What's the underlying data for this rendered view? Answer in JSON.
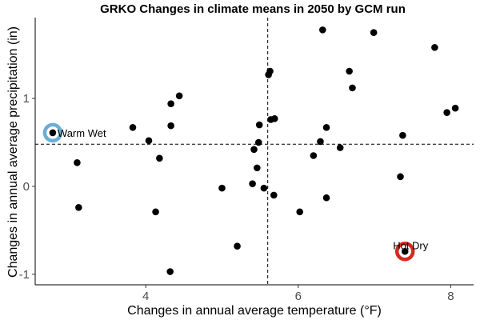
{
  "chart_data": {
    "type": "scatter",
    "title": "GRKO Changes in climate means in 2050 by GCM run",
    "xlabel": "Changes in annual average temperature (°F)",
    "ylabel": "Changes in annual average precipitation (in)",
    "xlim": [
      2.55,
      8.3
    ],
    "ylim": [
      -1.12,
      1.92
    ],
    "xticks": [
      4,
      6,
      8
    ],
    "yticks": [
      -1,
      0,
      1
    ],
    "tick_labels_x": [
      "4",
      "6",
      "8"
    ],
    "tick_labels_y": [
      "-1",
      "0",
      "1"
    ],
    "grid": false,
    "reference_lines": {
      "x": 5.6,
      "y": 0.48
    },
    "point_color": "#000000",
    "points": [
      {
        "x": 2.78,
        "y": 0.61
      },
      {
        "x": 3.1,
        "y": 0.27
      },
      {
        "x": 3.12,
        "y": -0.24
      },
      {
        "x": 3.83,
        "y": 0.67
      },
      {
        "x": 4.04,
        "y": 0.52
      },
      {
        "x": 4.13,
        "y": -0.29
      },
      {
        "x": 4.18,
        "y": 0.32
      },
      {
        "x": 4.33,
        "y": 0.94
      },
      {
        "x": 4.33,
        "y": 0.69
      },
      {
        "x": 4.44,
        "y": 1.03
      },
      {
        "x": 4.32,
        "y": -0.97
      },
      {
        "x": 5.0,
        "y": -0.02
      },
      {
        "x": 5.2,
        "y": -0.68
      },
      {
        "x": 5.4,
        "y": 0.03
      },
      {
        "x": 5.42,
        "y": 0.42
      },
      {
        "x": 5.46,
        "y": 0.21
      },
      {
        "x": 5.48,
        "y": 0.5
      },
      {
        "x": 5.49,
        "y": 0.7
      },
      {
        "x": 5.55,
        "y": -0.02
      },
      {
        "x": 5.61,
        "y": 1.27
      },
      {
        "x": 5.63,
        "y": 1.31
      },
      {
        "x": 5.64,
        "y": 0.76
      },
      {
        "x": 5.69,
        "y": 0.77
      },
      {
        "x": 5.68,
        "y": -0.1
      },
      {
        "x": 6.02,
        "y": -0.29
      },
      {
        "x": 6.2,
        "y": 0.35
      },
      {
        "x": 6.29,
        "y": 0.51
      },
      {
        "x": 6.32,
        "y": 1.78
      },
      {
        "x": 6.37,
        "y": 0.67
      },
      {
        "x": 6.37,
        "y": -0.13
      },
      {
        "x": 6.55,
        "y": 0.44
      },
      {
        "x": 6.67,
        "y": 1.31
      },
      {
        "x": 6.71,
        "y": 1.12
      },
      {
        "x": 6.99,
        "y": 1.75
      },
      {
        "x": 7.34,
        "y": 0.11
      },
      {
        "x": 7.37,
        "y": 0.58
      },
      {
        "x": 7.4,
        "y": -0.74
      },
      {
        "x": 7.79,
        "y": 1.58
      },
      {
        "x": 7.95,
        "y": 0.84
      },
      {
        "x": 8.06,
        "y": 0.89
      }
    ],
    "annotations": [
      {
        "label": "Warm Wet",
        "x": 2.78,
        "y": 0.61,
        "ring_color": "#6aaed6",
        "label_side": "right"
      },
      {
        "label": "Hot Dry",
        "x": 7.4,
        "y": -0.74,
        "ring_color": "#d42a20",
        "label_side": "above"
      }
    ]
  }
}
